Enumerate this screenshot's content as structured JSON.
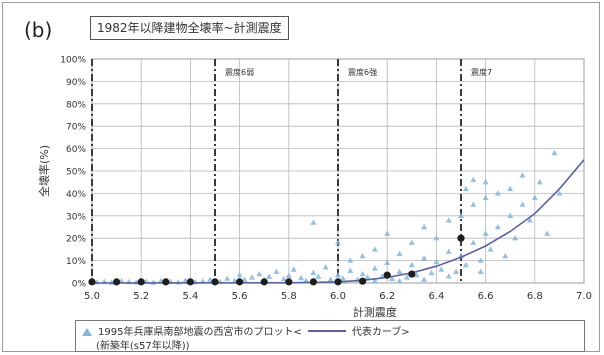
{
  "panel_label": "(b)",
  "chart_data": {
    "type": "scatter",
    "title": "1982年以降建物全壊率~計測震度",
    "xlabel": "計測震度",
    "ylabel": "全壊率(%)",
    "xlim": [
      5.0,
      7.0
    ],
    "ylim": [
      0,
      100
    ],
    "x_ticks": [
      "5.0",
      "5.2",
      "5.4",
      "5.6",
      "5.8",
      "6.0",
      "6.2",
      "6.4",
      "6.6",
      "6.8",
      "7.0"
    ],
    "y_ticks": [
      "0%",
      "10%",
      "20%",
      "30%",
      "40%",
      "50%",
      "60%",
      "70%",
      "80%",
      "90%",
      "100%"
    ],
    "grid": true,
    "intensity_boundaries": [
      {
        "x": 5.5,
        "label": "震度6弱"
      },
      {
        "x": 6.0,
        "label": "震度6強"
      },
      {
        "x": 6.5,
        "label": "震度7"
      }
    ],
    "marker_color": "#7fb6e0",
    "curve_color": "#5b62a8",
    "boundary_color": "#3a3a3a",
    "series": [
      {
        "name": "1995年兵庫県南部地震の西宮市のプロット",
        "marker": "triangle",
        "points": [
          [
            5.02,
            0.3
          ],
          [
            5.05,
            0.5
          ],
          [
            5.08,
            0.2
          ],
          [
            5.12,
            0.8
          ],
          [
            5.15,
            0.4
          ],
          [
            5.18,
            0.3
          ],
          [
            5.22,
            0.6
          ],
          [
            5.25,
            0.2
          ],
          [
            5.28,
            0.9
          ],
          [
            5.32,
            0.5
          ],
          [
            5.35,
            0.3
          ],
          [
            5.38,
            1.2
          ],
          [
            5.42,
            0.4
          ],
          [
            5.45,
            0.7
          ],
          [
            5.48,
            1.5
          ],
          [
            5.52,
            0.5
          ],
          [
            5.55,
            2.0
          ],
          [
            5.58,
            1.0
          ],
          [
            5.6,
            3.5
          ],
          [
            5.62,
            1.5
          ],
          [
            5.65,
            2.5
          ],
          [
            5.68,
            4.0
          ],
          [
            5.7,
            1.2
          ],
          [
            5.72,
            2.8
          ],
          [
            5.75,
            5.0
          ],
          [
            5.78,
            1.8
          ],
          [
            5.8,
            3.2
          ],
          [
            5.82,
            6.0
          ],
          [
            5.85,
            2.2
          ],
          [
            5.87,
            1.0
          ],
          [
            5.9,
            4.5
          ],
          [
            5.9,
            27.0
          ],
          [
            5.92,
            2.8
          ],
          [
            5.95,
            7.0
          ],
          [
            5.97,
            1.5
          ],
          [
            6.0,
            3.5
          ],
          [
            6.0,
            18.0
          ],
          [
            6.02,
            2.0
          ],
          [
            6.05,
            5.5
          ],
          [
            6.05,
            10.0
          ],
          [
            6.08,
            1.5
          ],
          [
            6.1,
            4.0
          ],
          [
            6.1,
            12.0
          ],
          [
            6.12,
            2.5
          ],
          [
            6.15,
            6.5
          ],
          [
            6.15,
            15.0
          ],
          [
            6.18,
            3.0
          ],
          [
            6.2,
            9.0
          ],
          [
            6.2,
            22.0
          ],
          [
            6.22,
            1.8
          ],
          [
            6.25,
            5.0
          ],
          [
            6.25,
            13.0
          ],
          [
            6.28,
            2.5
          ],
          [
            6.3,
            8.0
          ],
          [
            6.3,
            18.0
          ],
          [
            6.32,
            3.5
          ],
          [
            6.35,
            11.0
          ],
          [
            6.35,
            25.0
          ],
          [
            6.38,
            4.5
          ],
          [
            6.4,
            9.5
          ],
          [
            6.4,
            20.0
          ],
          [
            6.42,
            6.0
          ],
          [
            6.45,
            14.0
          ],
          [
            6.45,
            28.0
          ],
          [
            6.48,
            5.0
          ],
          [
            6.5,
            12.0
          ],
          [
            6.5,
            30.0
          ],
          [
            6.52,
            8.0
          ],
          [
            6.55,
            18.0
          ],
          [
            6.55,
            35.0
          ],
          [
            6.58,
            10.0
          ],
          [
            6.6,
            22.0
          ],
          [
            6.6,
            38.0
          ],
          [
            6.6,
            45.0
          ],
          [
            6.62,
            15.0
          ],
          [
            6.65,
            25.0
          ],
          [
            6.65,
            40.0
          ],
          [
            6.68,
            12.0
          ],
          [
            6.7,
            30.0
          ],
          [
            6.7,
            42.0
          ],
          [
            6.72,
            20.0
          ],
          [
            6.75,
            35.0
          ],
          [
            6.75,
            48.0
          ],
          [
            6.78,
            28.0
          ],
          [
            6.8,
            38.0
          ],
          [
            6.82,
            45.0
          ],
          [
            6.85,
            22.0
          ],
          [
            6.88,
            58.0
          ],
          [
            6.9,
            40.0
          ],
          [
            6.55,
            46.0
          ],
          [
            6.52,
            42.0
          ],
          [
            6.58,
            5.0
          ],
          [
            6.45,
            3.0
          ],
          [
            6.35,
            1.5
          ],
          [
            6.25,
            0.8
          ],
          [
            6.15,
            1.0
          ]
        ]
      },
      {
        "name": "代表カーブ",
        "marker": "line",
        "points": [
          [
            5.0,
            0.0
          ],
          [
            5.8,
            0.1
          ],
          [
            6.0,
            0.5
          ],
          [
            6.1,
            1.2
          ],
          [
            6.2,
            2.5
          ],
          [
            6.3,
            4.5
          ],
          [
            6.4,
            7.5
          ],
          [
            6.5,
            11.5
          ],
          [
            6.6,
            16.5
          ],
          [
            6.7,
            23.0
          ],
          [
            6.8,
            31.0
          ],
          [
            6.9,
            42.0
          ],
          [
            7.0,
            55.0
          ]
        ]
      },
      {
        "name": "",
        "marker": "circle",
        "points": [
          [
            5.0,
            0.5
          ],
          [
            5.1,
            0.5
          ],
          [
            5.2,
            0.5
          ],
          [
            5.3,
            0.5
          ],
          [
            5.4,
            0.5
          ],
          [
            5.5,
            0.5
          ],
          [
            5.6,
            0.5
          ],
          [
            5.7,
            0.5
          ],
          [
            5.8,
            0.5
          ],
          [
            5.9,
            0.5
          ],
          [
            6.0,
            0.5
          ],
          [
            6.1,
            0.8
          ],
          [
            6.2,
            3.5
          ],
          [
            6.3,
            4.0
          ],
          [
            6.5,
            20.0
          ]
        ]
      }
    ]
  },
  "legend": {
    "row1_prefix": "1995年兵庫県南部地震の西宮市のプロット<",
    "row1_suffix": "代表カーブ>",
    "row2": "(新築年(s57年以降))"
  }
}
